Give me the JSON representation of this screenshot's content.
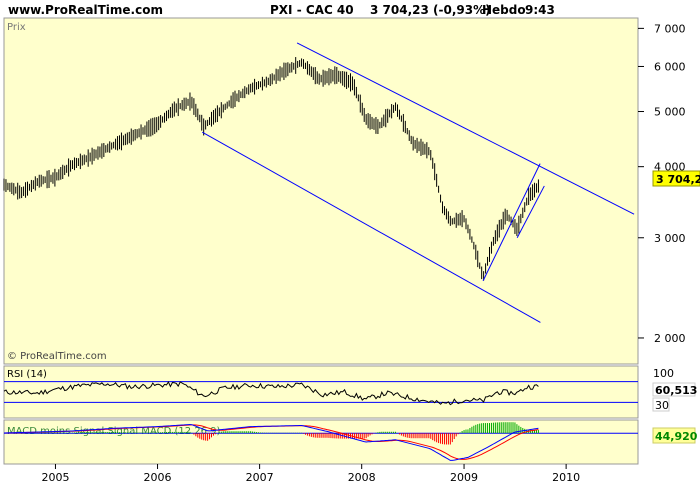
{
  "header": {
    "site": "www.ProRealTime.com",
    "instrument": "PXI - CAC 40",
    "price_change": "3 704,23 (-0,93%)",
    "period": "Hebdo",
    "time": "9:43"
  },
  "price_panel": {
    "label": "Prix",
    "watermark": "© ProRealTime.com",
    "last_value_label": "3 704,23"
  },
  "rsi_panel": {
    "label": "RSI (14)",
    "value_label": "60,513",
    "level_high": 70,
    "level_low": 30,
    "axis_top_label": "100",
    "axis_low_label": "30"
  },
  "macd_panel": {
    "label": "MACD moins Signal  Signal  MACD (12 26 9)",
    "value_label": "44,920"
  },
  "colors": {
    "panel_bg": "#ffffcc",
    "trend_lines": "#0000ff",
    "bars": "#000000",
    "last_value_badge": "#ffff00",
    "rsi_line": "#000000",
    "macd_line": "#0000ff",
    "signal_line": "#ff0000",
    "histogram_pos": "#00aa00",
    "histogram_neg": "#ff0000"
  },
  "chart_data": {
    "type": "line",
    "title": "PXI - CAC 40",
    "scale": "log",
    "ylim": [
      1800,
      7300
    ],
    "y_ticks": [
      2000,
      3000,
      4000,
      5000,
      6000,
      7000
    ],
    "y_tick_labels": [
      "2 000",
      "3 000",
      "4 000",
      "5 000",
      "6 000",
      "7 000"
    ],
    "xlim": [
      "2004-07-01",
      "2010-09-15"
    ],
    "x_ticks": [
      "2005-01-01",
      "2006-01-01",
      "2007-01-01",
      "2008-01-01",
      "2009-01-01",
      "2010-01-01"
    ],
    "x_tick_labels": [
      "2005",
      "2006",
      "2007",
      "2008",
      "2009",
      "2010"
    ],
    "series": [
      {
        "values": [
          [
            "2004-07-01",
            3720
          ],
          [
            "2004-09-01",
            3600
          ],
          [
            "2004-11-01",
            3770
          ],
          [
            "2005-01-01",
            3830
          ],
          [
            "2005-03-01",
            4030
          ],
          [
            "2005-05-01",
            4150
          ],
          [
            "2005-07-01",
            4300
          ],
          [
            "2005-09-01",
            4450
          ],
          [
            "2005-11-01",
            4600
          ],
          [
            "2006-01-01",
            4750
          ],
          [
            "2006-03-01",
            5050
          ],
          [
            "2006-05-01",
            5220
          ],
          [
            "2006-06-15",
            4700
          ],
          [
            "2006-08-01",
            4950
          ],
          [
            "2006-10-01",
            5250
          ],
          [
            "2006-12-01",
            5500
          ],
          [
            "2007-02-01",
            5650
          ],
          [
            "2007-04-01",
            5900
          ],
          [
            "2007-06-01",
            6100
          ],
          [
            "2007-08-01",
            5700
          ],
          [
            "2007-10-01",
            5800
          ],
          [
            "2007-12-01",
            5600
          ],
          [
            "2008-01-15",
            4850
          ],
          [
            "2008-03-01",
            4700
          ],
          [
            "2008-05-01",
            5100
          ],
          [
            "2008-07-01",
            4400
          ],
          [
            "2008-09-01",
            4250
          ],
          [
            "2008-10-15",
            3400
          ],
          [
            "2008-11-15",
            3200
          ],
          [
            "2008-12-31",
            3250
          ],
          [
            "2009-02-01",
            2950
          ],
          [
            "2009-03-10",
            2550
          ],
          [
            "2009-04-15",
            2950
          ],
          [
            "2009-06-01",
            3300
          ],
          [
            "2009-07-10",
            3100
          ],
          [
            "2009-08-20",
            3550
          ],
          [
            "2009-09-25",
            3704
          ]
        ]
      }
    ],
    "channel_lines": [
      {
        "from": [
          "2007-05-15",
          6600
        ],
        "to": [
          "2010-09-01",
          3300
        ]
      },
      {
        "from": [
          "2006-06-10",
          4600
        ],
        "to": [
          "2009-10-01",
          2130
        ]
      },
      {
        "from": [
          "2009-03-10",
          2520
        ],
        "to": [
          "2009-09-30",
          4050
        ]
      },
      {
        "from": [
          "2009-07-10",
          3000
        ],
        "to": [
          "2009-10-15",
          3700
        ]
      }
    ]
  },
  "rsi_data": [
    [
      "2004-07-01",
      50
    ],
    [
      "2004-11-01",
      48
    ],
    [
      "2005-01-01",
      55
    ],
    [
      "2005-04-01",
      62
    ],
    [
      "2005-07-01",
      66
    ],
    [
      "2005-10-01",
      60
    ],
    [
      "2006-01-01",
      63
    ],
    [
      "2006-04-01",
      66
    ],
    [
      "2006-06-15",
      42
    ],
    [
      "2006-09-01",
      58
    ],
    [
      "2006-12-01",
      63
    ],
    [
      "2007-03-01",
      60
    ],
    [
      "2007-06-01",
      64
    ],
    [
      "2007-08-15",
      45
    ],
    [
      "2007-11-01",
      50
    ],
    [
      "2008-01-15",
      36
    ],
    [
      "2008-04-01",
      48
    ],
    [
      "2008-07-01",
      38
    ],
    [
      "2008-10-15",
      27
    ],
    [
      "2009-01-01",
      35
    ],
    [
      "2009-03-10",
      33
    ],
    [
      "2009-05-01",
      50
    ],
    [
      "2009-07-10",
      48
    ],
    [
      "2009-08-15",
      60
    ],
    [
      "2009-09-25",
      60.5
    ]
  ],
  "macd_data": [
    [
      "2004-07-01",
      2
    ],
    [
      "2005-03-01",
      20
    ],
    [
      "2005-08-01",
      45
    ],
    [
      "2006-01-01",
      60
    ],
    [
      "2006-05-01",
      80
    ],
    [
      "2006-07-01",
      20
    ],
    [
      "2006-12-01",
      60
    ],
    [
      "2007-06-01",
      70
    ],
    [
      "2007-09-01",
      15
    ],
    [
      "2008-01-15",
      -80
    ],
    [
      "2008-05-01",
      -60
    ],
    [
      "2008-09-01",
      -140
    ],
    [
      "2008-11-15",
      -250
    ],
    [
      "2009-01-15",
      -220
    ],
    [
      "2009-04-01",
      -120
    ],
    [
      "2009-07-01",
      10
    ],
    [
      "2009-09-25",
      45
    ]
  ]
}
